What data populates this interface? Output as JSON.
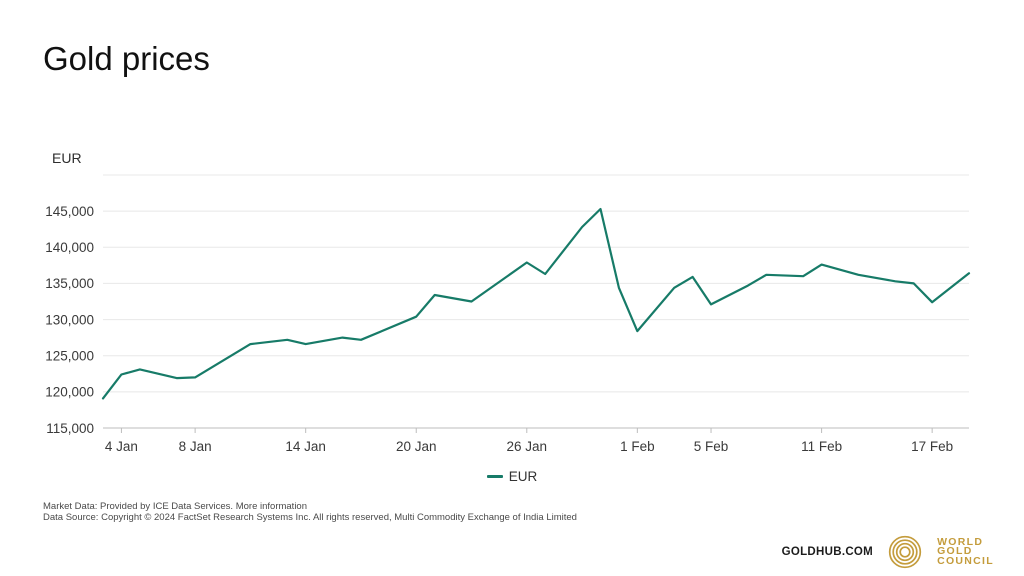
{
  "header": {
    "title": "Gold prices"
  },
  "colors": {
    "line": "#177b68",
    "gold": "#c49c3c",
    "grid": "#e8e8e8",
    "axis": "#bdbdbd",
    "tick_label": "#3a3a3a",
    "title_text": "#111111",
    "footer_text": "#4a4a4a"
  },
  "chart_data": {
    "type": "line",
    "title": "Gold prices",
    "xlabel": "",
    "ylabel": "EUR",
    "ylim": [
      115000,
      150000
    ],
    "y_step": 5000,
    "grid": true,
    "legend": {
      "label": "EUR",
      "position": "bottom-center"
    },
    "x_days_total": 47,
    "xticks": [
      {
        "label": "4 Jan",
        "day": 1
      },
      {
        "label": "8 Jan",
        "day": 5
      },
      {
        "label": "14 Jan",
        "day": 11
      },
      {
        "label": "20 Jan",
        "day": 17
      },
      {
        "label": "26 Jan",
        "day": 23
      },
      {
        "label": "1 Feb",
        "day": 29
      },
      {
        "label": "5 Feb",
        "day": 33
      },
      {
        "label": "11 Feb",
        "day": 39
      },
      {
        "label": "17 Feb",
        "day": 45
      }
    ],
    "series": [
      {
        "name": "EUR",
        "color": "#177b68",
        "points": [
          {
            "date": "3 Jan",
            "day": 0,
            "value": 119100
          },
          {
            "date": "4 Jan",
            "day": 1,
            "value": 122400
          },
          {
            "date": "5 Jan",
            "day": 2,
            "value": 123100
          },
          {
            "date": "7 Jan",
            "day": 4,
            "value": 121900
          },
          {
            "date": "8 Jan",
            "day": 5,
            "value": 122000
          },
          {
            "date": "11 Jan",
            "day": 8,
            "value": 126600
          },
          {
            "date": "13 Jan",
            "day": 10,
            "value": 127200
          },
          {
            "date": "14 Jan",
            "day": 11,
            "value": 126600
          },
          {
            "date": "16 Jan",
            "day": 13,
            "value": 127500
          },
          {
            "date": "17 Jan",
            "day": 14,
            "value": 127200
          },
          {
            "date": "20 Jan",
            "day": 17,
            "value": 130400
          },
          {
            "date": "21 Jan",
            "day": 18,
            "value": 133400
          },
          {
            "date": "23 Jan",
            "day": 20,
            "value": 132500
          },
          {
            "date": "26 Jan",
            "day": 23,
            "value": 137900
          },
          {
            "date": "27 Jan",
            "day": 24,
            "value": 136300
          },
          {
            "date": "29 Jan",
            "day": 26,
            "value": 142800
          },
          {
            "date": "30 Jan",
            "day": 27,
            "value": 145300
          },
          {
            "date": "31 Jan",
            "day": 28,
            "value": 134400
          },
          {
            "date": "1 Feb",
            "day": 29,
            "value": 128400
          },
          {
            "date": "3 Feb",
            "day": 31,
            "value": 134400
          },
          {
            "date": "4 Feb",
            "day": 32,
            "value": 135900
          },
          {
            "date": "5 Feb",
            "day": 33,
            "value": 132100
          },
          {
            "date": "7 Feb",
            "day": 35,
            "value": 134700
          },
          {
            "date": "8 Feb",
            "day": 36,
            "value": 136200
          },
          {
            "date": "10 Feb",
            "day": 38,
            "value": 136000
          },
          {
            "date": "11 Feb",
            "day": 39,
            "value": 137600
          },
          {
            "date": "13 Feb",
            "day": 41,
            "value": 136200
          },
          {
            "date": "15 Feb",
            "day": 43,
            "value": 135300
          },
          {
            "date": "16 Feb",
            "day": 44,
            "value": 135000
          },
          {
            "date": "17 Feb",
            "day": 45,
            "value": 132400
          },
          {
            "date": "19 Feb",
            "day": 47,
            "value": 136400
          }
        ]
      }
    ]
  },
  "footer": {
    "market_data_prefix": "Market Data: Provided by ICE Data Services. ",
    "more_info_link": "More information",
    "data_source": "Data Source: Copyright © 2024 FactSet Research Systems Inc. All rights reserved, Multi Commodity Exchange of India Limited"
  },
  "brand": {
    "goldhub": "GOLDHUB.COM",
    "wgc_lines": [
      "WORLD",
      "GOLD",
      "COUNCIL"
    ]
  }
}
